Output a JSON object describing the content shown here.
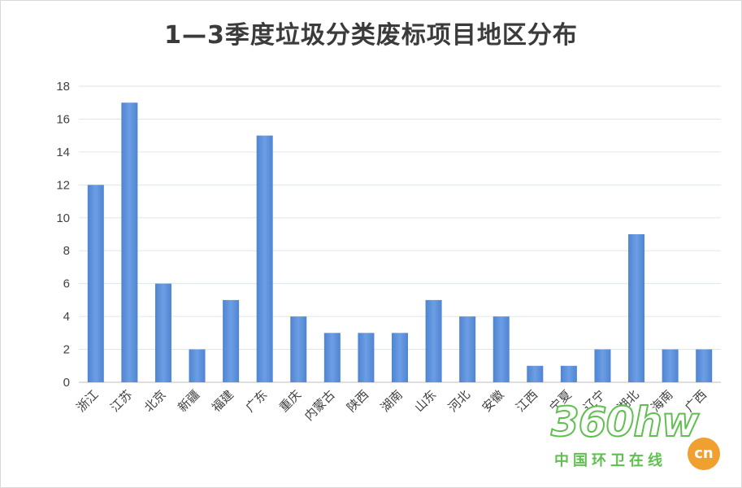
{
  "chart_data": {
    "type": "bar",
    "title": "1—3季度垃圾分类废标项目地区分布",
    "categories": [
      "浙江",
      "江苏",
      "北京",
      "新疆",
      "福建",
      "广东",
      "重庆",
      "内蒙古",
      "陕西",
      "湖南",
      "山东",
      "河北",
      "安徽",
      "江西",
      "宁夏",
      "辽宁",
      "湖北",
      "海南",
      "广西"
    ],
    "values": [
      12,
      17,
      6,
      2,
      5,
      15,
      4,
      3,
      3,
      3,
      5,
      4,
      4,
      1,
      1,
      2,
      9,
      2,
      2
    ],
    "ylim": [
      0,
      18
    ],
    "yticks": [
      0,
      2,
      4,
      6,
      8,
      10,
      12,
      14,
      16,
      18
    ],
    "xlabel": "",
    "ylabel": "",
    "grid": true,
    "bar_color": "#5b8fd8",
    "bar_color_light": "#7eaae8"
  },
  "watermark": {
    "big": "360hw",
    "badge": "cn",
    "sub": "中国环卫在线"
  }
}
